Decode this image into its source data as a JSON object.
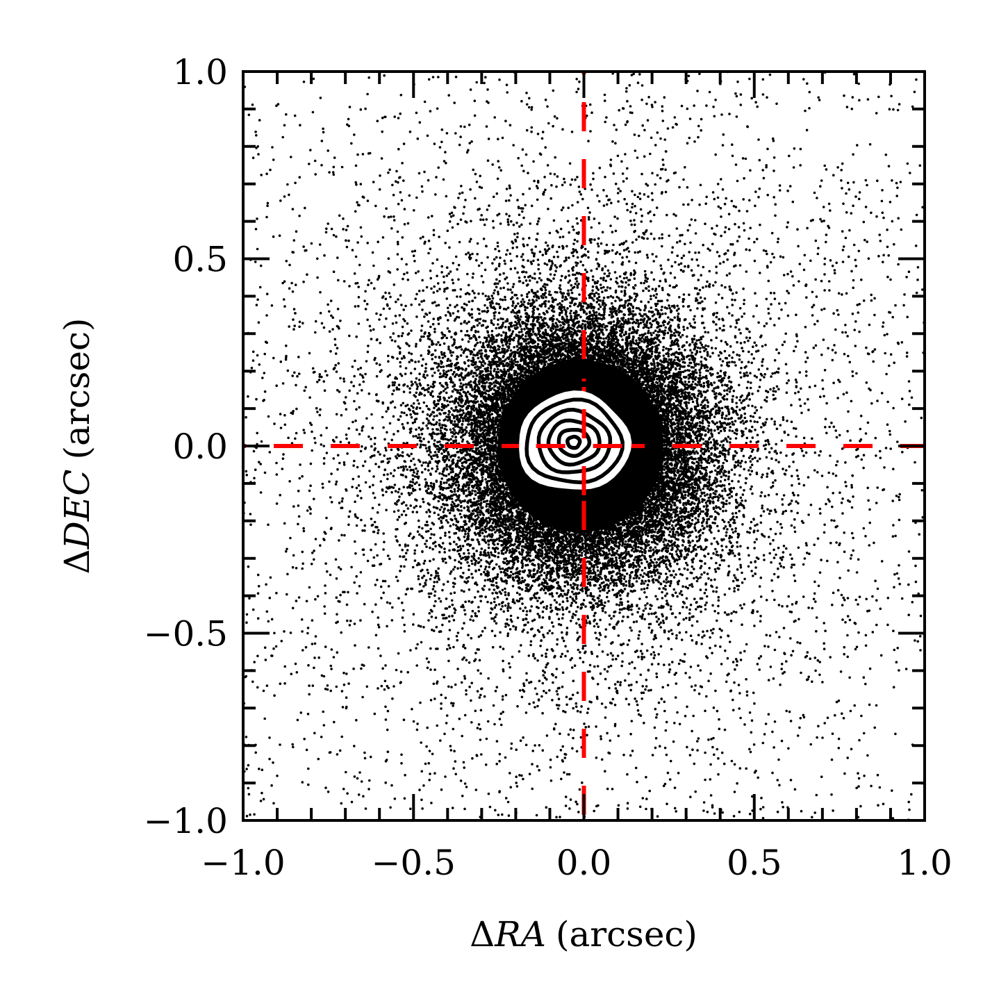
{
  "chart_data": {
    "type": "scatter",
    "title": "",
    "xlabel": {
      "prefix": "Δ",
      "symbol": "RA",
      "unit": "(arcsec)"
    },
    "ylabel": {
      "prefix": "Δ",
      "symbol": "DEC",
      "unit": "(arcsec)"
    },
    "xlim": [
      -1.0,
      1.0
    ],
    "ylim": [
      -1.0,
      1.0
    ],
    "x_ticks": [
      -1.0,
      -0.5,
      0.0,
      0.5,
      1.0
    ],
    "y_ticks": [
      -1.0,
      -0.5,
      0.0,
      0.5,
      1.0
    ],
    "x_tick_labels": [
      "−1.0",
      "−0.5",
      "0.0",
      "0.5",
      "1.0"
    ],
    "y_tick_labels": [
      "−1.0",
      "−0.5",
      "0.0",
      "0.5",
      "1.0"
    ],
    "minor_tick_step": 0.1,
    "grid": false,
    "legend": "none",
    "colors": {
      "points": "#000000",
      "reference_lines": "#ff0000",
      "contours": "#000000",
      "contour_halo": "#ffffff",
      "axes": "#000000"
    },
    "series": [
      {
        "kind": "scatter",
        "distribution": "approximately gaussian cloud of offsets centred near the origin, densest within ~0.3 arcsec and sparse out to the plot edges",
        "approx_center": [
          -0.01,
          0.0
        ],
        "approx_sigma_arcsec": 0.18,
        "point_count_estimate": 60000
      }
    ],
    "reference_lines": [
      {
        "orientation": "vertical",
        "x": 0.0,
        "style": "dashed"
      },
      {
        "orientation": "horizontal",
        "y": 0.0,
        "style": "dashed"
      }
    ],
    "contours": {
      "center": [
        -0.03,
        0.01
      ],
      "levels": [
        {
          "rx": 0.14,
          "ry": 0.11
        },
        {
          "rx": 0.105,
          "ry": 0.083
        },
        {
          "rx": 0.075,
          "ry": 0.058
        },
        {
          "rx": 0.045,
          "ry": 0.035
        },
        {
          "rx": 0.018,
          "ry": 0.015
        }
      ]
    }
  }
}
